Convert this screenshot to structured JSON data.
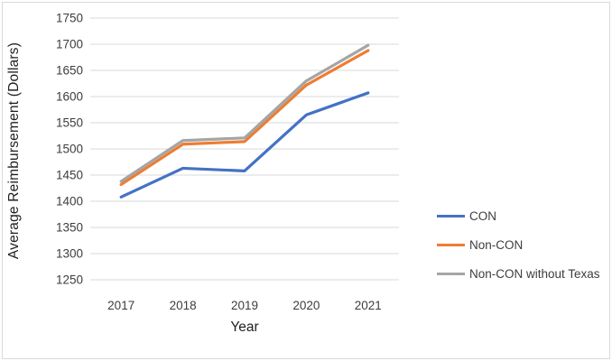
{
  "figure": {
    "background": "#ffffff",
    "border_color": "#d9d9d9"
  },
  "chart_data": {
    "type": "line",
    "title": "",
    "xlabel": "Year",
    "ylabel": "Average Reimbursement (Dollars)",
    "categories": [
      "2017",
      "2018",
      "2019",
      "2020",
      "2021"
    ],
    "series": [
      {
        "name": "CON",
        "color": "#4472C4",
        "values": [
          1408,
          1463,
          1458,
          1565,
          1607
        ]
      },
      {
        "name": "Non-CON",
        "color": "#ED7D31",
        "values": [
          1432,
          1509,
          1514,
          1622,
          1688
        ]
      },
      {
        "name": "Non-CON without Texas",
        "color": "#A5A5A5",
        "values": [
          1438,
          1516,
          1521,
          1630,
          1698
        ]
      }
    ],
    "ylim": [
      1250,
      1750
    ],
    "ytick_step": 50,
    "ytick_labels": [
      "1250",
      "1300",
      "1350",
      "1400",
      "1450",
      "1500",
      "1550",
      "1600",
      "1650",
      "1700",
      "1750"
    ],
    "grid": true,
    "gridline_color": "#D9D9D9",
    "tick_label_color": "#3d3d3d",
    "axis_title_color": "#1f1f1f",
    "legend_position": "right",
    "legend_entries": [
      "CON",
      "Non-CON",
      "Non-CON without Texas"
    ]
  }
}
